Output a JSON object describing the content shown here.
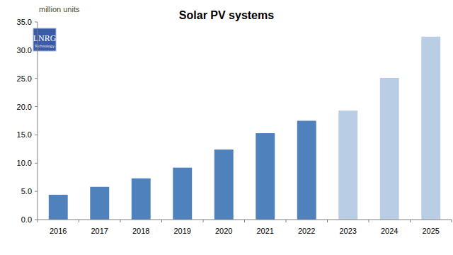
{
  "chart_data": {
    "type": "bar",
    "title": "Solar PV systems",
    "y_label": "million units",
    "annotations": [
      "LNRG",
      "Technology"
    ],
    "categories": [
      "2016",
      "2017",
      "2018",
      "2019",
      "2020",
      "2021",
      "2022",
      "2023",
      "2024",
      "2025"
    ],
    "values": [
      4.4,
      5.8,
      7.3,
      9.2,
      12.4,
      15.3,
      17.5,
      19.3,
      25.1,
      32.4
    ],
    "colors": [
      "#4f81bd",
      "#4f81bd",
      "#4f81bd",
      "#4f81bd",
      "#4f81bd",
      "#4f81bd",
      "#4f81bd",
      "#b9cde5",
      "#b9cde5",
      "#b9cde5"
    ],
    "ylim": [
      0,
      35
    ],
    "yticks": [
      {
        "value": 0,
        "label": "0.0"
      },
      {
        "value": 5,
        "label": "5.0"
      },
      {
        "value": 10,
        "label": "10.0"
      },
      {
        "value": 15,
        "label": "15.0"
      },
      {
        "value": 20,
        "label": "20.0"
      },
      {
        "value": 25,
        "label": "25.0"
      },
      {
        "value": 30,
        "label": "30.0"
      },
      {
        "value": 35,
        "label": "35.0"
      }
    ],
    "grid": false
  }
}
